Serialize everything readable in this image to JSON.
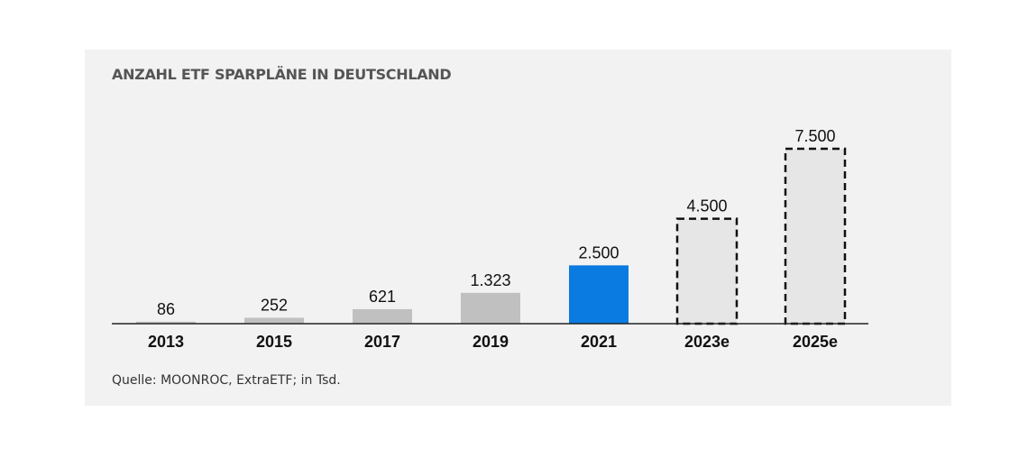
{
  "chart_data": {
    "type": "bar",
    "title": "ANZAHL ETF SPARPLÄNE  IN  DEUTSCHLAND",
    "categories": [
      "2013",
      "2015",
      "2017",
      "2019",
      "2021",
      "2023e",
      "2025e"
    ],
    "values": [
      86,
      252,
      621,
      1323,
      2500,
      4500,
      7500
    ],
    "value_labels": [
      "86",
      "252",
      "621",
      "1.323",
      "2.500",
      "4.500",
      "7.500"
    ],
    "bar_styles": [
      "actual",
      "actual",
      "actual",
      "actual",
      "highlight",
      "estimate",
      "estimate"
    ],
    "ylim": [
      0,
      7500
    ],
    "grid": false,
    "colors": {
      "actual": "#c0c0c0",
      "highlight": "#0a7be0",
      "estimate_fill": "#e6e6e6",
      "estimate_border": "#111111",
      "baseline": "#222222",
      "text": "#111111"
    }
  },
  "source": "Quelle: MOONROC, ExtraETF;  in Tsd."
}
